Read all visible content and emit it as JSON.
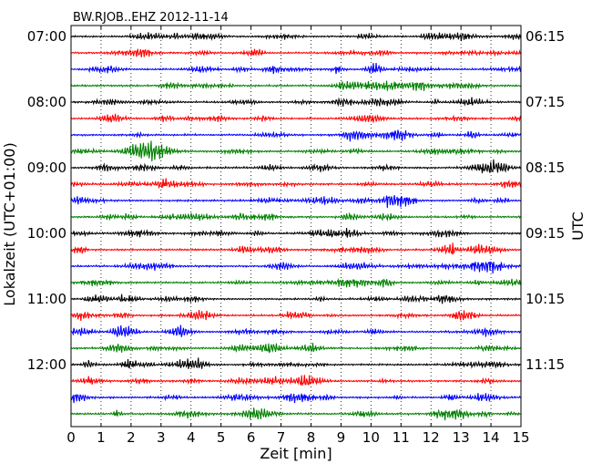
{
  "chart_data": {
    "type": "line",
    "title": "BW.RJOB..EHZ 2012-11-14",
    "xlabel": "Zeit  [min]",
    "ylabel_left": "Lokalzeit (UTC+01:00)",
    "ylabel_right": "UTC",
    "xlim": [
      0,
      15
    ],
    "x_ticks": [
      "0",
      "1",
      "2",
      "3",
      "4",
      "5",
      "6",
      "7",
      "8",
      "9",
      "10",
      "11",
      "12",
      "13",
      "14",
      "15"
    ],
    "left_tick_labels": [
      "07:00",
      "08:00",
      "09:00",
      "10:00",
      "11:00",
      "12:00"
    ],
    "right_tick_labels": [
      "06:15",
      "07:15",
      "08:15",
      "09:15",
      "10:15",
      "11:15"
    ],
    "trace_colors": [
      "#000000",
      "#ff0000",
      "#0000ff",
      "#008000"
    ],
    "trace_count": 24,
    "trace_interval_minutes": 15,
    "vertical_gridlines": "dotted at every minute",
    "grid": true
  }
}
